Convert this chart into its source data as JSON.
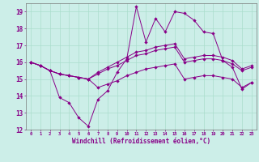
{
  "xlabel": "Windchill (Refroidissement éolien,°C)",
  "x": [
    0,
    1,
    2,
    3,
    4,
    5,
    6,
    7,
    8,
    9,
    10,
    11,
    12,
    13,
    14,
    15,
    16,
    17,
    18,
    19,
    20,
    21,
    22,
    23
  ],
  "line1": [
    16.0,
    15.8,
    15.5,
    13.9,
    13.6,
    12.7,
    12.2,
    13.8,
    14.3,
    15.4,
    16.2,
    19.3,
    17.2,
    18.6,
    17.8,
    19.0,
    18.9,
    18.5,
    17.8,
    17.7,
    16.1,
    15.7,
    14.4,
    14.8
  ],
  "line2": [
    16.0,
    15.8,
    15.5,
    15.3,
    15.2,
    15.1,
    15.0,
    15.4,
    15.7,
    16.0,
    16.3,
    16.6,
    16.7,
    16.9,
    17.0,
    17.1,
    16.2,
    16.3,
    16.4,
    16.4,
    16.3,
    16.1,
    15.6,
    15.8
  ],
  "line3": [
    16.0,
    15.8,
    15.5,
    15.3,
    15.2,
    15.1,
    15.0,
    15.3,
    15.6,
    15.8,
    16.1,
    16.4,
    16.5,
    16.7,
    16.8,
    16.9,
    16.0,
    16.1,
    16.2,
    16.2,
    16.1,
    15.9,
    15.5,
    15.7
  ],
  "line4": [
    16.0,
    15.8,
    15.5,
    15.3,
    15.2,
    15.1,
    15.0,
    14.5,
    14.7,
    14.9,
    15.2,
    15.4,
    15.6,
    15.7,
    15.8,
    15.9,
    15.0,
    15.1,
    15.2,
    15.2,
    15.1,
    15.0,
    14.5,
    14.8
  ],
  "line_color": "#880088",
  "bg_color": "#cceee8",
  "grid_color": "#aaddcc",
  "yticks": [
    12,
    13,
    14,
    15,
    16,
    17,
    18,
    19
  ],
  "ylim": [
    12,
    19.5
  ],
  "xlim_min": -0.5,
  "xlim_max": 23.5
}
